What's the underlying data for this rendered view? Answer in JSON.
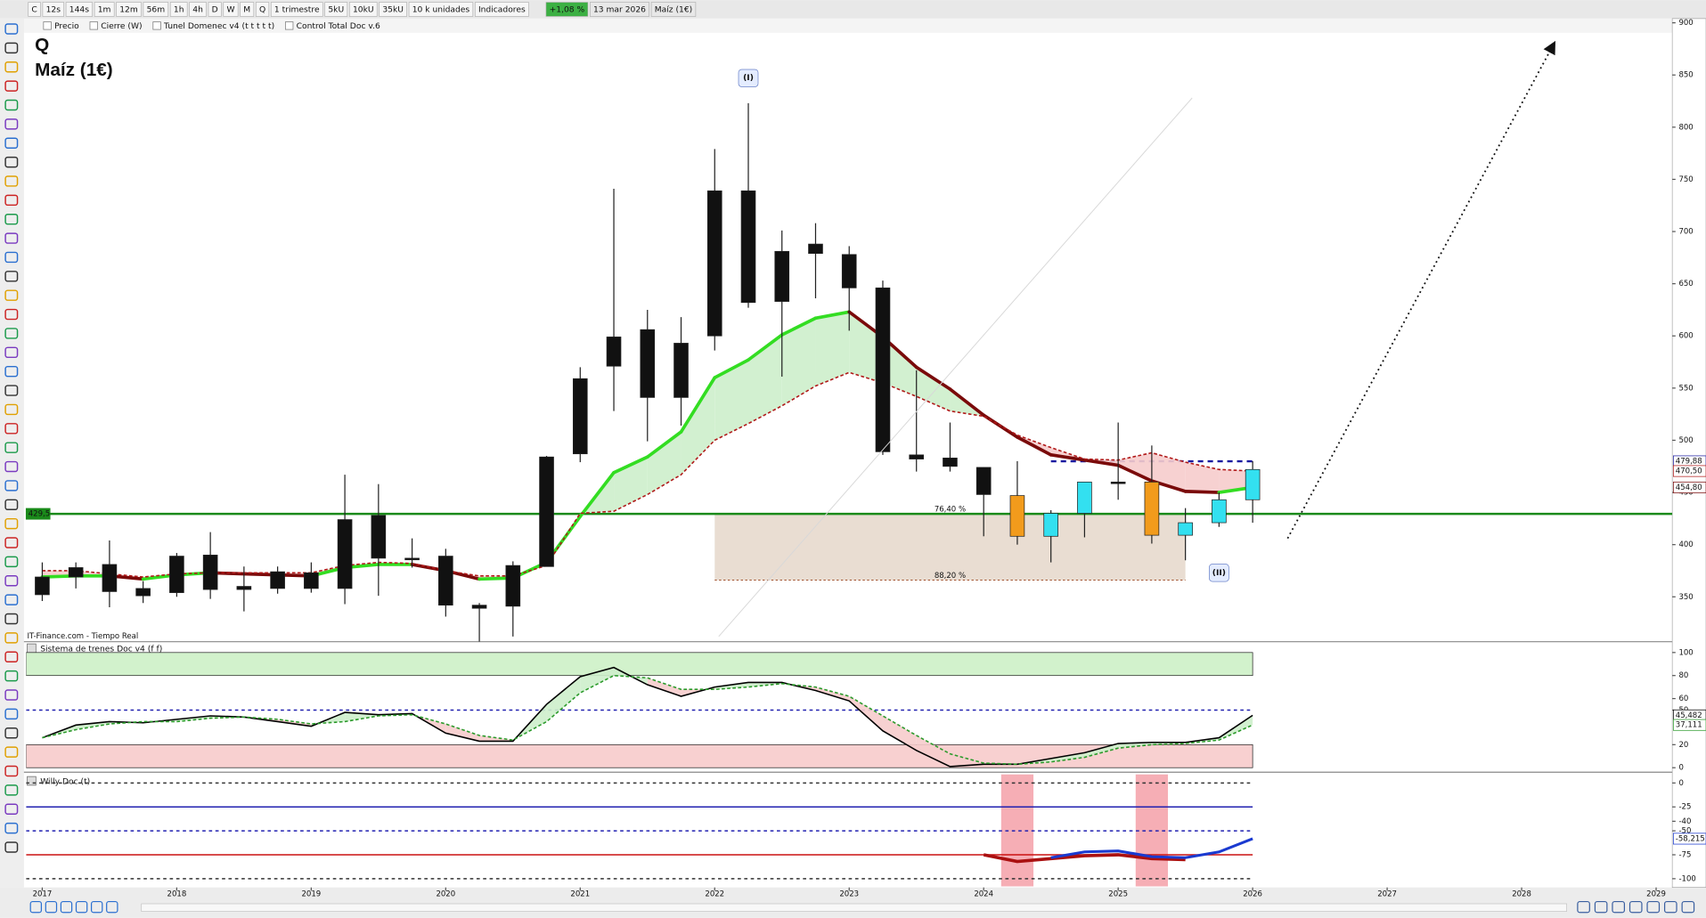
{
  "toolbar": {
    "buttons": [
      "C",
      "12s",
      "144s",
      "1m",
      "12m",
      "56m",
      "1h",
      "4h",
      "D",
      "W",
      "M",
      "Q",
      "1 trimestre",
      "5kU",
      "10kU",
      "35kU",
      "10 k unidades",
      "Indicadores"
    ],
    "change": "+1,08 %",
    "date": "13 mar 2026",
    "instrument": "Maíz (1€)"
  },
  "legend_bar": [
    "Precio",
    "Cierre (W)",
    "Tunel Domenec v4 (t t t t t)",
    "Control Total Doc v.6"
  ],
  "chart_data": [
    {
      "type": "candlestick",
      "title": "Q",
      "subtitle": "Maíz (1€)",
      "source": "IT-Finance.com - Tiempo Real",
      "x": [
        2017,
        2017.25,
        2017.5,
        2017.75,
        2018,
        2018.25,
        2018.5,
        2018.75,
        2019,
        2019.25,
        2019.5,
        2019.75,
        2020,
        2020.25,
        2020.5,
        2020.75,
        2021,
        2021.25,
        2021.5,
        2021.75,
        2022,
        2022.25,
        2022.5,
        2022.75,
        2023,
        2023.25,
        2023.5,
        2023.75,
        2024,
        2024.25,
        2024.5,
        2024.75,
        2025,
        2025.25,
        2025.5,
        2025.75,
        2026
      ],
      "open": [
        369,
        378,
        381,
        358,
        389,
        390,
        360,
        374,
        373,
        424,
        428,
        387,
        389,
        342,
        341,
        379,
        487,
        571,
        541,
        593,
        600,
        739,
        633,
        688,
        678,
        646,
        486,
        483,
        474,
        447,
        408,
        430,
        460,
        460,
        409,
        421,
        443
      ],
      "high": [
        383,
        383,
        404,
        365,
        392,
        412,
        379,
        379,
        383,
        467,
        458,
        406,
        396,
        344,
        384,
        485,
        570,
        741,
        625,
        618,
        779,
        823,
        701,
        708,
        686,
        653,
        567,
        517,
        474,
        480,
        433,
        460,
        517,
        495,
        435,
        450,
        480
      ],
      "low": [
        346,
        358,
        340,
        344,
        350,
        348,
        336,
        353,
        354,
        343,
        351,
        378,
        331,
        307,
        312,
        379,
        479,
        528,
        499,
        514,
        586,
        627,
        561,
        636,
        605,
        486,
        470,
        470,
        408,
        400,
        383,
        407,
        443,
        401,
        385,
        417,
        421
      ],
      "close": [
        352,
        369,
        355,
        351,
        354,
        357,
        357,
        358,
        358,
        358,
        387,
        386,
        342,
        339,
        380,
        484,
        559,
        599,
        606,
        541,
        739,
        632,
        681,
        679,
        646,
        489,
        482,
        475,
        448,
        408,
        430,
        460,
        459,
        409,
        421,
        443,
        472
      ],
      "candle_colors": [
        "#111111",
        "#111111",
        "#111111",
        "#111111",
        "#111111",
        "#111111",
        "#111111",
        "#111111",
        "#111111",
        "#111111",
        "#111111",
        "#111111",
        "#111111",
        "#111111",
        "#111111",
        "#111111",
        "#111111",
        "#111111",
        "#111111",
        "#111111",
        "#111111",
        "#111111",
        "#111111",
        "#111111",
        "#111111",
        "#111111",
        "#111111",
        "#111111",
        "#111111",
        "#f29b1c",
        "#33e0f0",
        "#33e0f0",
        "#111111",
        "#f29b1c",
        "#33e0f0",
        "#33e0f0",
        "#33e0f0"
      ],
      "series": [
        {
          "values": [
            369,
            370,
            370,
            367,
            371,
            373,
            372,
            371,
            370,
            378,
            381,
            381,
            375,
            367,
            368,
            383,
            427,
            469,
            484,
            508,
            560,
            577,
            601,
            617,
            623,
            599,
            570,
            549,
            524,
            503,
            486,
            481,
            476,
            461,
            451,
            450,
            454.8
          ],
          "up_color": "#33dd22",
          "down_color": "#7a0a0a",
          "last_label": "454,80"
        },
        {
          "values": [
            375,
            375,
            372,
            369,
            372,
            373,
            373,
            373,
            373,
            380,
            383,
            382,
            375,
            370,
            370,
            380,
            430,
            432,
            448,
            467,
            500,
            516,
            533,
            552,
            565,
            555,
            542,
            528,
            523,
            505,
            493,
            482,
            481,
            488,
            479,
            472,
            470.5
          ],
          "color": "#b01818",
          "dash": true,
          "last_label": "470,50"
        }
      ],
      "fill_between": {
        "above": "#cdeecb",
        "below": "#f6cccc"
      },
      "levels": [
        {
          "value": 429.5,
          "label": "429,5",
          "color": "#1a8a1a",
          "label_side": "left"
        },
        {
          "value": 479.88,
          "label": "479,88",
          "color": "#1a1aa0",
          "dash": true,
          "from": 2024.5,
          "to": 2026,
          "label_side": "right"
        }
      ],
      "fib": {
        "from": 2022,
        "to": 2025.5,
        "color": "#e9ddd2",
        "levels": [
          {
            "value": 429.5,
            "label": "76,40 %",
            "color": "#55bb55"
          },
          {
            "value": 366,
            "label": "88,20 %",
            "color": "#a0522d"
          }
        ]
      },
      "drawings": [
        {
          "x": [
            2022.03,
            2025.55
          ],
          "y": [
            312,
            828
          ],
          "color": "#d8d8d8",
          "style": "solid"
        },
        {
          "x": [
            2026.26,
            2028.24
          ],
          "y": [
            406,
            880
          ],
          "color": "#111111",
          "style": "dotted",
          "arrow": true
        }
      ],
      "annotations": [
        {
          "text": "(I)",
          "x": 2022.25,
          "y": 847
        },
        {
          "text": "(II)",
          "x": 2025.75,
          "y": 373
        }
      ],
      "xlim": [
        2016.88,
        2029.12
      ],
      "xticks": [
        2017,
        2018,
        2019,
        2020,
        2021,
        2022,
        2023,
        2024,
        2025,
        2026,
        2027,
        2028,
        2029
      ],
      "ylim": [
        307,
        903
      ],
      "yticks": [
        350,
        400,
        450,
        500,
        550,
        600,
        650,
        700,
        750,
        800,
        850,
        900
      ]
    },
    {
      "type": "indicator",
      "title": "Sistema de trenes Doc v4 (f f)",
      "x": [
        2017,
        2017.25,
        2017.5,
        2017.75,
        2018,
        2018.25,
        2018.5,
        2018.75,
        2019,
        2019.25,
        2019.5,
        2019.75,
        2020,
        2020.25,
        2020.5,
        2020.75,
        2021,
        2021.25,
        2021.5,
        2021.75,
        2022,
        2022.25,
        2022.5,
        2022.75,
        2023,
        2023.25,
        2023.5,
        2023.75,
        2024,
        2024.25,
        2024.5,
        2024.75,
        2025,
        2025.25,
        2025.5,
        2025.75,
        2026
      ],
      "series": [
        {
          "values": [
            26,
            37,
            40,
            39,
            42,
            45,
            44,
            40,
            36,
            48,
            46,
            47,
            30,
            23,
            23,
            55,
            79,
            87,
            72,
            62,
            70,
            74,
            74,
            67,
            58,
            32,
            15,
            1,
            3,
            3,
            8,
            13,
            21,
            22,
            22,
            26,
            45.482
          ],
          "color": "#000000",
          "last_label": "45,482"
        },
        {
          "values": [
            26,
            33,
            38,
            40,
            40,
            43,
            44,
            42,
            38,
            40,
            45,
            46,
            38,
            28,
            24,
            40,
            65,
            80,
            78,
            68,
            68,
            70,
            73,
            70,
            62,
            45,
            28,
            12,
            4,
            3,
            5,
            9,
            17,
            20,
            21,
            24,
            37.111
          ],
          "color": "#2a9a2a",
          "dash": true,
          "last_label": "37,111"
        }
      ],
      "fill_between": {
        "above": "#cdeecb",
        "below": "#f6cccc"
      },
      "bands": [
        {
          "from": 80,
          "to": 100,
          "color": "#d2f2cc"
        },
        {
          "from": 0,
          "to": 20,
          "color": "#f8d0d0"
        }
      ],
      "levels": [
        {
          "value": 50,
          "color": "#2020b0",
          "dash": true
        }
      ],
      "x_end": 2026,
      "xlim": [
        2016.88,
        2029.12
      ],
      "ylim": [
        -2,
        107.5
      ],
      "yticks": [
        0,
        20,
        50,
        60,
        80,
        100
      ]
    },
    {
      "type": "indicator",
      "title": "Willy Doc (t)",
      "x": [
        2017,
        2017.25,
        2017.5,
        2017.75,
        2018,
        2018.25,
        2018.5,
        2018.75,
        2019,
        2019.25,
        2019.5,
        2019.75,
        2020,
        2020.25,
        2020.5,
        2020.75,
        2021,
        2021.25,
        2021.5,
        2021.75,
        2022,
        2022.25,
        2022.5,
        2022.75,
        2023,
        2023.25,
        2023.5,
        2023.75,
        2024,
        2024.25,
        2024.5,
        2024.75,
        2025,
        2025.25,
        2025.5,
        2025.75,
        2026
      ],
      "series": [
        {
          "values": [
            null,
            null,
            null,
            null,
            null,
            null,
            null,
            null,
            null,
            null,
            null,
            null,
            null,
            null,
            null,
            null,
            null,
            null,
            null,
            null,
            null,
            null,
            null,
            null,
            null,
            null,
            null,
            null,
            -75,
            -82,
            -79,
            -76,
            -75,
            -79,
            -80,
            null,
            null
          ],
          "color": "#aa1010",
          "width": 3
        },
        {
          "values": [
            null,
            null,
            null,
            null,
            null,
            null,
            null,
            null,
            null,
            null,
            null,
            null,
            null,
            null,
            null,
            null,
            null,
            null,
            null,
            null,
            null,
            null,
            null,
            null,
            null,
            null,
            null,
            null,
            null,
            null,
            -78,
            -72,
            -71,
            -77,
            -78,
            -72,
            -58.215
          ],
          "color": "#1a3ad0",
          "width": 2.5,
          "last_label": "-58,215"
        }
      ],
      "highlights": [
        [
          2024.13,
          2024.37
        ],
        [
          2025.13,
          2025.37
        ]
      ],
      "highlight_color": "#f4a0a8",
      "levels": [
        {
          "value": 0,
          "color": "#333333",
          "dash": true
        },
        {
          "value": -25,
          "color": "#2020b0"
        },
        {
          "value": -50,
          "color": "#2020b0",
          "dash": true
        },
        {
          "value": -75,
          "color": "#cc1111"
        },
        {
          "value": -100,
          "color": "#333333",
          "dash": true
        }
      ],
      "x_end": 2026,
      "xlim": [
        2016.88,
        2029.12
      ],
      "ylim": [
        -108,
        9
      ],
      "yticks": [
        -100,
        -75,
        -50,
        -40,
        -25,
        0
      ]
    }
  ]
}
